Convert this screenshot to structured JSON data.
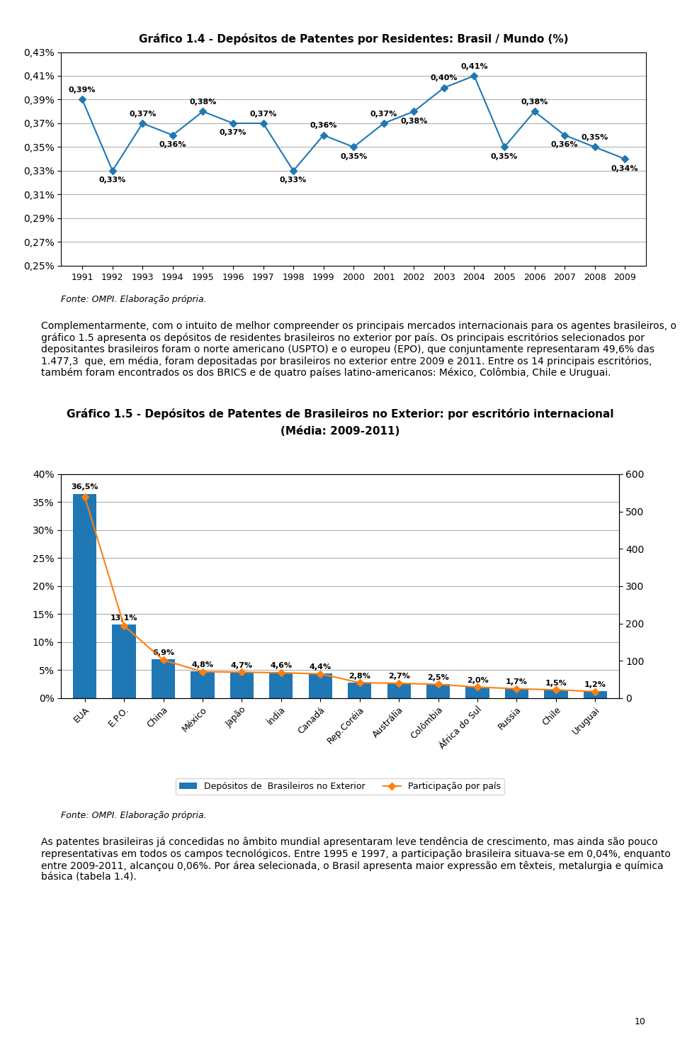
{
  "chart_data": [
    {
      "type": "line",
      "title": "Gráfico 1.4 - Depósitos de Patentes por Residentes: Brasil / Mundo (%)",
      "x": [
        1991,
        1992,
        1993,
        1994,
        1995,
        1996,
        1997,
        1998,
        1999,
        2000,
        2001,
        2002,
        2003,
        2004,
        2005,
        2006,
        2007,
        2008,
        2009
      ],
      "values": [
        0.39,
        0.33,
        0.37,
        0.36,
        0.38,
        0.37,
        0.37,
        0.33,
        0.36,
        0.35,
        0.37,
        0.38,
        0.4,
        0.41,
        0.35,
        0.38,
        0.36,
        0.35,
        0.34
      ],
      "value_labels": [
        "0,39%",
        "0,33%",
        "0,37%",
        "0,36%",
        "0,38%",
        "0,37%",
        "0,37%",
        "0,33%",
        "0,36%",
        "0,35%",
        "0,37%",
        "0,38%",
        "0,40%",
        "0,41%",
        "0,35%",
        "0,38%",
        "0,36%",
        "0,35%",
        "0,34%"
      ],
      "data_labels": true,
      "marker": "diamond",
      "xlim": [
        1990.3,
        2009.7
      ],
      "xticks": [
        1991,
        1992,
        1993,
        1994,
        1995,
        1996,
        1997,
        1998,
        1999,
        2000,
        2001,
        2002,
        2003,
        2004,
        2005,
        2006,
        2007,
        2008,
        2009
      ],
      "ylim": [
        0.25,
        0.43
      ],
      "yticks": [
        {
          "value": 0.25,
          "label": "0,25%"
        },
        {
          "value": 0.27,
          "label": "0,27%"
        },
        {
          "value": 0.29,
          "label": "0,29%"
        },
        {
          "value": 0.31,
          "label": "0,31%"
        },
        {
          "value": 0.33,
          "label": "0,33%"
        },
        {
          "value": 0.35,
          "label": "0,35%"
        },
        {
          "value": 0.37,
          "label": "0,37%"
        },
        {
          "value": 0.39,
          "label": "0,39%"
        },
        {
          "value": 0.41,
          "label": "0,41%"
        },
        {
          "value": 0.43,
          "label": "0,43%"
        }
      ],
      "grid": "y",
      "source": "Fonte: OMPI. Elaboração própria.",
      "annotations": [
        "Complementarmente, com o intuito de melhor compreender os principais mercados internacionais para os agentes brasileiros, o gráfico 1.5 apresenta os depósitos de residentes brasileiros no exterior por país. Os principais escritórios selecionados por depositantes brasileiros foram o norte americano (USPTO) e o europeu (EPO), que conjuntamente representaram 49,6% das 1.477,3  que, em média, foram depositadas por brasileiros no exterior entre 2009 e 2011. Entre os 14 principais escritórios, também foram encontrados os dos BRICS e de quatro países latino-americanos: México, Colômbia, Chile e Uruguai."
      ]
    },
    {
      "type": "bar",
      "title": "Gráfico 1.5 - Depósitos de Patentes de Brasileiros no Exterior: por escritório internacional",
      "subtitle": "(Média: 2009-2011)",
      "categories": [
        "EUA",
        "E.P.O.",
        "China",
        "México",
        "Japão",
        "Índia",
        "Canadá",
        "Rep.Coréia",
        "Austrália",
        "Colômbia",
        "África do Sul",
        "Russia",
        "Chile",
        "Uruguai"
      ],
      "series": [
        {
          "name": "Depósitos de  Brasileiros no Exterior",
          "type": "bar",
          "values": [
            36.5,
            13.1,
            6.9,
            4.8,
            4.7,
            4.6,
            4.4,
            2.8,
            2.7,
            2.5,
            2.0,
            1.7,
            1.5,
            1.2
          ],
          "value_labels": [
            "36,5%",
            "13,1%",
            "6,9%",
            "4,8%",
            "4,7%",
            "4,6%",
            "4,4%",
            "2,8%",
            "2,7%",
            "2,5%",
            "2,0%",
            "1,7%",
            "1,5%",
            "1,2%"
          ],
          "data_labels": true
        },
        {
          "name": "Participação por país",
          "type": "line",
          "axis": "y2",
          "marker": "diamond",
          "values": [
            539.3,
            193.7,
            102.0,
            70.9,
            69.5,
            68.0,
            65.0,
            41.4,
            39.9,
            36.9,
            29.6,
            25.1,
            22.2,
            17.7
          ]
        }
      ],
      "ylim": [
        0,
        40
      ],
      "yticks": [
        {
          "value": 0,
          "label": "0%"
        },
        {
          "value": 5,
          "label": "5%"
        },
        {
          "value": 10,
          "label": "10%"
        },
        {
          "value": 15,
          "label": "15%"
        },
        {
          "value": 20,
          "label": "20%"
        },
        {
          "value": 25,
          "label": "25%"
        },
        {
          "value": 30,
          "label": "30%"
        },
        {
          "value": 35,
          "label": "35%"
        },
        {
          "value": 40,
          "label": "40%"
        }
      ],
      "y2lim": [
        0,
        600
      ],
      "y2ticks": [
        0,
        100,
        200,
        300,
        400,
        500,
        600
      ],
      "grid": "y",
      "legend": "lower center",
      "source": "Fonte: OMPI. Elaboração própria.",
      "annotations": [
        "As patentes brasileiras já concedidas no âmbito mundial apresentaram leve tendência de crescimento, mas ainda são pouco representativas em todos os campos tecnológicos. Entre 1995 e 1997, a participação brasileira situava-se em 0,04%, enquanto entre 2009-2011, alcançou 0,06%. Por área selecionada, o Brasil apresenta maior expressão em têxteis, metalurgia e química básica (tabela 1.4).",
        "10"
      ]
    }
  ]
}
